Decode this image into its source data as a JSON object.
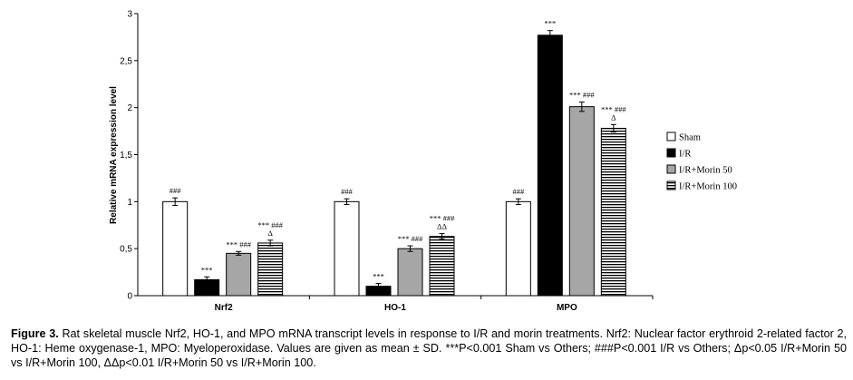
{
  "chart_data": {
    "type": "bar",
    "categories": [
      "Nrf2",
      "HO-1",
      "MPO"
    ],
    "ylabel": "Relative mRNA expression level",
    "xlabel": "",
    "ylim": [
      0,
      3
    ],
    "y_ticks": [
      "0",
      "0,5",
      "1",
      "1,5",
      "2",
      "2,5",
      "3"
    ],
    "legend_position": "right",
    "series": [
      {
        "name": "Sham",
        "values": [
          1.0,
          1.0,
          1.0
        ],
        "errors": [
          0.04,
          0.03,
          0.03
        ],
        "pattern": "white",
        "annotations": [
          [
            "###"
          ],
          [
            "###"
          ],
          [
            "###"
          ]
        ]
      },
      {
        "name": "I/R",
        "values": [
          0.17,
          0.1,
          2.77
        ],
        "errors": [
          0.03,
          0.03,
          0.05
        ],
        "pattern": "black",
        "annotations": [
          [
            "***"
          ],
          [
            "***"
          ],
          [
            "***"
          ]
        ]
      },
      {
        "name": "I/R+Morin 50",
        "values": [
          0.45,
          0.5,
          2.01
        ],
        "errors": [
          0.02,
          0.03,
          0.05
        ],
        "pattern": "gray",
        "annotations": [
          [
            "*** ###"
          ],
          [
            "*** ###"
          ],
          [
            "*** ###"
          ]
        ]
      },
      {
        "name": "I/R+Morin 100",
        "values": [
          0.56,
          0.63,
          1.78
        ],
        "errors": [
          0.03,
          0.03,
          0.04
        ],
        "pattern": "stripes",
        "annotations": [
          [
            "Δ",
            "*** ###"
          ],
          [
            "ΔΔ",
            "*** ###"
          ],
          [
            "Δ",
            "*** ###"
          ]
        ]
      }
    ]
  },
  "caption": {
    "label": "Figure 3.",
    "text": "Rat skeletal muscle Nrf2, HO-1, and MPO mRNA transcript levels in response to I/R and morin treatments. Nrf2: Nuclear factor erythroid 2-related factor 2, HO-1: Heme oxygenase-1,  MPO: Myeloperoxidase. Values are given as mean ± SD. ***P<0.001 Sham vs Others; ###P<0.001 I/R vs Others; Δp<0.05 I/R+Morin 50 vs I/R+Morin 100, ΔΔp<0.01 I/R+Morin 50 vs I/R+Morin 100."
  }
}
